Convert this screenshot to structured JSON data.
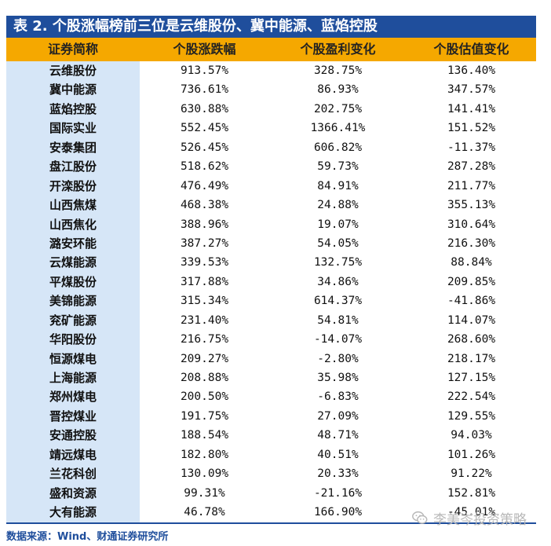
{
  "title": "表 2.  个股涨幅榜前三位是云维股份、冀中能源、蓝焰控股",
  "headers": [
    "证券简称",
    "个股涨跌幅",
    "个股盈利变化",
    "个股估值变化"
  ],
  "rows": [
    {
      "name": "云维股份",
      "change": "913.57%",
      "profit": "328.75%",
      "valuation": "136.40%"
    },
    {
      "name": "冀中能源",
      "change": "736.61%",
      "profit": "86.93%",
      "valuation": "347.57%"
    },
    {
      "name": "蓝焰控股",
      "change": "630.88%",
      "profit": "202.75%",
      "valuation": "141.41%"
    },
    {
      "name": "国际实业",
      "change": "552.45%",
      "profit": "1366.41%",
      "valuation": "151.52%"
    },
    {
      "name": "安泰集团",
      "change": "526.45%",
      "profit": "606.82%",
      "valuation": "-11.37%"
    },
    {
      "name": "盘江股份",
      "change": "518.62%",
      "profit": "59.73%",
      "valuation": "287.28%"
    },
    {
      "name": "开滦股份",
      "change": "476.49%",
      "profit": "84.91%",
      "valuation": "211.77%"
    },
    {
      "name": "山西焦煤",
      "change": "468.38%",
      "profit": "24.88%",
      "valuation": "355.13%"
    },
    {
      "name": "山西焦化",
      "change": "388.96%",
      "profit": "19.07%",
      "valuation": "310.64%"
    },
    {
      "name": "潞安环能",
      "change": "387.27%",
      "profit": "54.05%",
      "valuation": "216.30%"
    },
    {
      "name": "云煤能源",
      "change": "339.53%",
      "profit": "132.75%",
      "valuation": "88.84%"
    },
    {
      "name": "平煤股份",
      "change": "317.88%",
      "profit": "34.86%",
      "valuation": "209.85%"
    },
    {
      "name": "美锦能源",
      "change": "315.34%",
      "profit": "614.37%",
      "valuation": "-41.86%"
    },
    {
      "name": "兖矿能源",
      "change": "231.40%",
      "profit": "54.81%",
      "valuation": "114.07%"
    },
    {
      "name": "华阳股份",
      "change": "216.75%",
      "profit": "-14.07%",
      "valuation": "268.60%"
    },
    {
      "name": "恒源煤电",
      "change": "209.27%",
      "profit": "-2.80%",
      "valuation": "218.17%"
    },
    {
      "name": "上海能源",
      "change": "208.88%",
      "profit": "35.98%",
      "valuation": "127.15%"
    },
    {
      "name": "郑州煤电",
      "change": "200.50%",
      "profit": "-6.83%",
      "valuation": "222.54%"
    },
    {
      "name": "晋控煤业",
      "change": "191.75%",
      "profit": "27.09%",
      "valuation": "129.55%"
    },
    {
      "name": "安通控股",
      "change": "188.54%",
      "profit": "48.71%",
      "valuation": "94.03%"
    },
    {
      "name": "靖远煤电",
      "change": "182.80%",
      "profit": "40.51%",
      "valuation": "101.26%"
    },
    {
      "name": "兰花科创",
      "change": "130.09%",
      "profit": "20.33%",
      "valuation": "91.22%"
    },
    {
      "name": "盛和资源",
      "change": "99.31%",
      "profit": "-21.16%",
      "valuation": "152.81%"
    },
    {
      "name": "大有能源",
      "change": "46.78%",
      "profit": "166.90%",
      "valuation": "-45.01%"
    }
  ],
  "source": "数据来源：Wind、财通证券研究所",
  "watermark": "李美岑投资策略",
  "colors": {
    "title_bg": "#1f4e9c",
    "header_bg": "#f5a800",
    "first_col_bg": "#d6e6f7"
  },
  "icons": {
    "watermark": "wechat-icon"
  }
}
